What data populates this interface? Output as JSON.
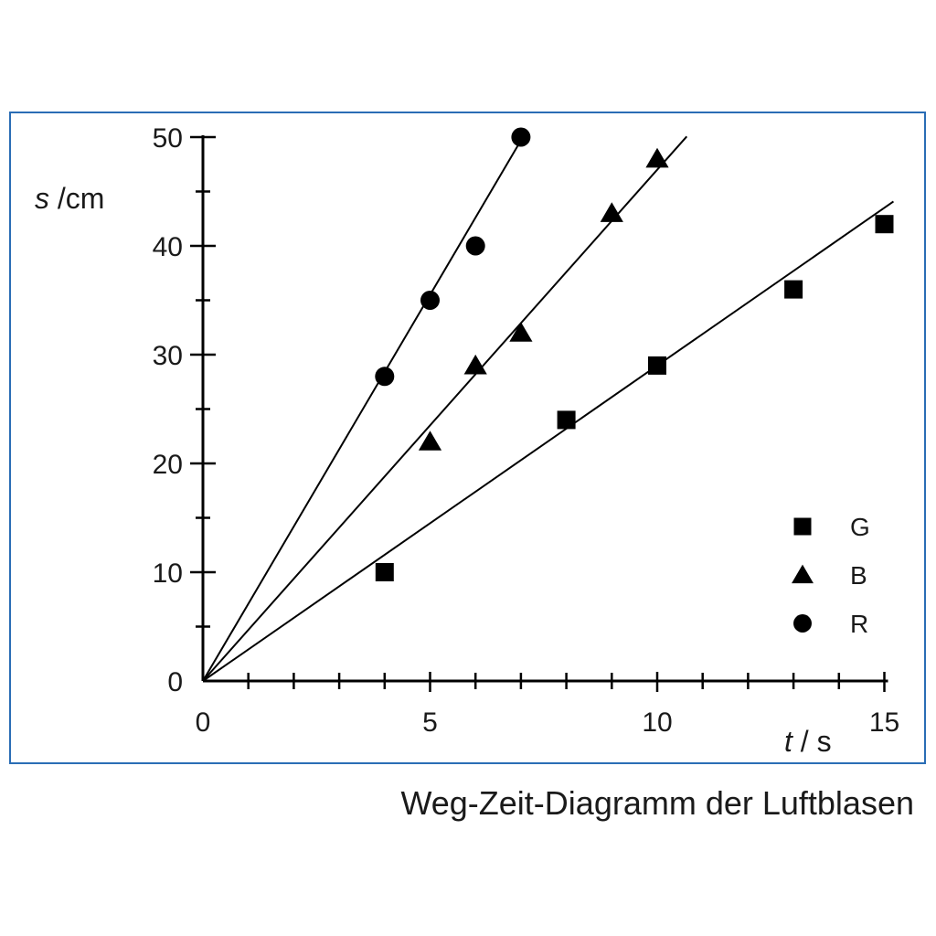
{
  "caption": "Weg-Zeit-Diagramm der Luftblasen",
  "chart_data": {
    "type": "scatter",
    "xlabel": {
      "var": "t",
      "unit": " / s"
    },
    "ylabel": {
      "var": "s",
      "unit": " /cm"
    },
    "xlim": [
      0,
      15
    ],
    "ylim": [
      0,
      50
    ],
    "x_ticks": [
      0,
      5,
      10,
      15
    ],
    "y_ticks": [
      0,
      10,
      20,
      30,
      40,
      50
    ],
    "x_minor_step": 1,
    "y_minor_step": 5,
    "legend_position": "bottom-right",
    "series": [
      {
        "name": "G",
        "marker": "square",
        "x": [
          4,
          8,
          10,
          13,
          15
        ],
        "y": [
          10,
          24,
          29,
          36,
          42
        ],
        "fit_line": {
          "slope": 2.9,
          "x_end": 15.2
        }
      },
      {
        "name": "B",
        "marker": "triangle",
        "x": [
          5,
          6,
          7,
          9,
          10
        ],
        "y": [
          22,
          29,
          32,
          43,
          48
        ],
        "fit_line": {
          "slope": 4.7,
          "x_end": 10.65
        }
      },
      {
        "name": "R",
        "marker": "circle",
        "x": [
          4,
          5,
          6,
          7
        ],
        "y": [
          28,
          35,
          40,
          50
        ],
        "fit_line": {
          "slope": 7.1,
          "x_end": 7.05
        }
      }
    ],
    "colors": {
      "ink": "#000000",
      "frame": "#2a6db5"
    }
  }
}
